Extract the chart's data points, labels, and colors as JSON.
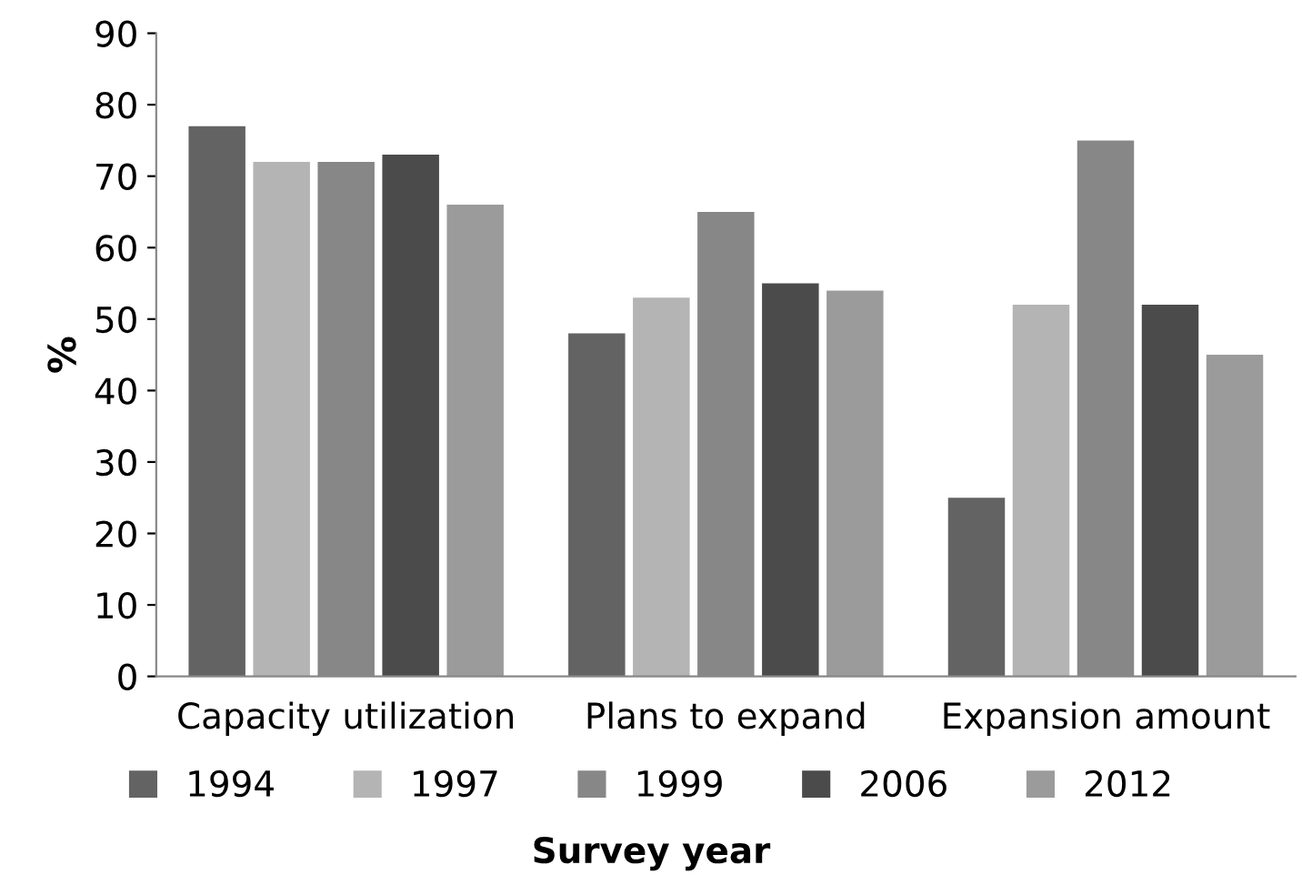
{
  "chart_data": {
    "type": "bar",
    "ylabel": "%",
    "legend_title": "Survey year",
    "categories": [
      "Capacity utilization",
      "Plans to expand",
      "Expansion amount"
    ],
    "series": [
      {
        "name": "1994",
        "color": "#636363",
        "values": [
          77,
          48,
          25
        ]
      },
      {
        "name": "1997",
        "color": "#b4b4b4",
        "values": [
          72,
          53,
          52
        ]
      },
      {
        "name": "1999",
        "color": "#878787",
        "values": [
          72,
          65,
          75
        ]
      },
      {
        "name": "2006",
        "color": "#4b4b4b",
        "values": [
          73,
          55,
          52
        ]
      },
      {
        "name": "2012",
        "color": "#9b9b9b",
        "values": [
          66,
          54,
          45
        ]
      }
    ],
    "ylim": [
      0,
      90
    ],
    "yticks": [
      0,
      10,
      20,
      30,
      40,
      50,
      60,
      70,
      80,
      90
    ],
    "grid": false,
    "legend": "bottom"
  }
}
